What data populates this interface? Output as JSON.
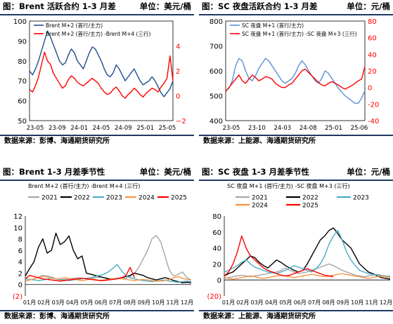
{
  "panels": {
    "p1": {
      "title": "图：Brent 活跃合约 1-3 月差",
      "unit": "单位：美元/桶",
      "source": "数据来源：彭博、海通期货研究所"
    },
    "p2": {
      "title": "图：SC 夜盘活跃合约 1-3 月差",
      "unit": "单位：元/桶",
      "source": "数据来源：上能源、海通期货研究所"
    },
    "p3": {
      "title": "图：Brent 1-3 月差季节性",
      "unit": "单位：美元/桶",
      "source": "数据来源：彭博、海通期货研究所"
    },
    "p4": {
      "title": "图：SC 夜盘 1-3 月差季节性",
      "unit": "单位：元/桶",
      "source": "数据来源：上能源、海通期货研究所"
    }
  },
  "chart_data": [
    {
      "id": "brent_spread",
      "type": "line",
      "title": "",
      "x_ticks": [
        "23-05",
        "23-09",
        "24-01",
        "24-05",
        "24-09",
        "25-01",
        "25-05"
      ],
      "left_axis": {
        "min": 50,
        "max": 100,
        "ticks": [
          50,
          60,
          70,
          80,
          90,
          100
        ]
      },
      "right_axis": {
        "min": -2,
        "max": 6,
        "ticks": [
          "−2",
          "0",
          "2",
          "4"
        ],
        "tick_values": [
          -2,
          0,
          2,
          4
        ]
      },
      "series": [
        {
          "name": "Brent M+2 (首行/主力)",
          "axis": "left",
          "color": "#1f4e8c",
          "values": [
            75,
            73,
            76,
            80,
            85,
            90,
            95,
            92,
            88,
            84,
            80,
            78,
            79,
            83,
            86,
            84,
            80,
            78,
            76,
            80,
            84,
            87,
            86,
            83,
            80,
            76,
            73,
            72,
            74,
            78,
            76,
            73,
            70,
            72,
            74,
            76,
            73,
            70,
            68,
            69,
            70,
            72,
            70,
            67,
            64,
            62,
            64,
            66,
            70
          ]
        },
        {
          "name": "Brent M+2 (首行/主力) -Brent M+4 (三行)",
          "axis": "right",
          "color": "#ff0000",
          "values": [
            0.5,
            0.3,
            0.8,
            1.5,
            2.5,
            3.5,
            2.8,
            2.5,
            1.8,
            1.4,
            1.0,
            0.6,
            0.8,
            1.3,
            1.6,
            1.4,
            1.1,
            0.9,
            0.8,
            1.0,
            1.2,
            1.4,
            1.2,
            1.0,
            0.6,
            0.3,
            0.1,
            0.2,
            0.5,
            0.7,
            0.4,
            0.0,
            -0.2,
            0.1,
            0.3,
            0.6,
            0.4,
            0.1,
            -0.1,
            0.2,
            0.4,
            0.6,
            0.5,
            0.3,
            0.7,
            1.0,
            1.4,
            3.2,
            1.2
          ]
        }
      ]
    },
    {
      "id": "sc_spread",
      "type": "line",
      "title": "",
      "x_ticks": [
        "23-05",
        "23-10",
        "24-03",
        "24-08",
        "25-01",
        "25-06"
      ],
      "left_axis": {
        "min": 400,
        "max": 800,
        "ticks": [
          400,
          500,
          600,
          700,
          800
        ]
      },
      "right_axis": {
        "min": -40,
        "max": 80,
        "ticks": [
          -40,
          -20,
          0,
          20,
          40,
          60,
          80
        ]
      },
      "series": [
        {
          "name": "SC 夜盘 M+1 (首行/主力)",
          "axis": "left",
          "color": "#5b8fd6",
          "values": [
            520,
            530,
            560,
            620,
            650,
            640,
            600,
            570,
            560,
            580,
            610,
            630,
            650,
            640,
            620,
            600,
            580,
            560,
            550,
            560,
            570,
            590,
            620,
            640,
            625,
            600,
            580,
            560,
            550,
            570,
            600,
            590,
            570,
            550,
            530,
            515,
            500,
            490,
            480,
            470,
            470,
            490,
            520
          ]
        },
        {
          "name": "SC 夜盘 M+1 (首行/主力) -SC 夜盘 M+3 (三行)",
          "axis": "right",
          "color": "#ff0000",
          "values": [
            -5,
            0,
            5,
            10,
            15,
            8,
            5,
            10,
            15,
            12,
            8,
            10,
            13,
            12,
            10,
            5,
            2,
            0,
            0,
            3,
            5,
            10,
            15,
            20,
            22,
            18,
            14,
            10,
            6,
            3,
            2,
            5,
            7,
            5,
            3,
            0,
            -2,
            0,
            2,
            5,
            8,
            10,
            25
          ]
        }
      ]
    },
    {
      "id": "brent_seasonal",
      "type": "line",
      "title": "",
      "xlabel": "",
      "ylabel": "",
      "legend_title": "Brent M+2 (首行/主力) -Brent M+4 (三行)",
      "x_ticks": [
        "01月",
        "02月",
        "03月",
        "04月",
        "05月",
        "06月",
        "07月",
        "08月",
        "09月",
        "10月",
        "11月",
        "12月"
      ],
      "y_axis": {
        "min": -2,
        "max": 12,
        "ticks": [
          "(2)",
          "0",
          "2",
          "4",
          "6",
          "8",
          "10",
          "12"
        ],
        "tick_values": [
          -2,
          0,
          2,
          4,
          6,
          8,
          10,
          12
        ]
      },
      "legend_position": "top",
      "series": [
        {
          "name": "2021",
          "color": "#a6a6a6",
          "values": [
            0.6,
            0.8,
            1.0,
            1.3,
            1.6,
            1.5,
            1.3,
            1.0,
            0.8,
            0.9,
            1.0,
            1.1,
            1.2,
            1.1,
            1.0,
            1.1,
            1.2,
            1.3,
            1.2,
            1.1,
            1.0,
            1.1,
            1.2,
            1.1,
            1.4,
            2.0,
            3.0,
            4.5,
            6.0,
            8.0,
            8.6,
            7.5,
            5.0,
            2.5,
            1.5,
            1.8,
            2.2,
            1.2,
            0.8
          ]
        },
        {
          "name": "2022",
          "color": "#000000",
          "values": [
            1.5,
            2.8,
            4.0,
            6.5,
            8.0,
            5.5,
            6.0,
            9.0,
            7.0,
            7.5,
            8.5,
            6.0,
            4.5,
            5.0,
            2.0,
            1.8,
            1.6,
            1.4,
            1.2,
            1.0,
            0.9,
            1.0,
            1.2,
            1.4,
            1.6,
            2.0,
            1.8,
            1.6,
            1.2,
            1.0,
            0.8,
            1.0,
            1.2,
            1.0,
            0.7,
            0.5,
            0.3,
            0.4,
            0.3
          ]
        },
        {
          "name": "2023",
          "color": "#4bacc6",
          "values": [
            1.0,
            0.9,
            0.8,
            0.7,
            0.8,
            0.9,
            1.2,
            1.0,
            0.9,
            0.8,
            0.7,
            0.8,
            0.9,
            1.0,
            1.1,
            1.2,
            1.4,
            1.6,
            1.8,
            2.2,
            2.8,
            3.5,
            2.5,
            1.6,
            1.2,
            1.0,
            0.8,
            0.7,
            0.6,
            0.5,
            0.6,
            0.7,
            0.8,
            0.6,
            0.5,
            0.4,
            0.5,
            0.6,
            0.5
          ]
        },
        {
          "name": "2024",
          "color": "#f79646",
          "values": [
            0.6,
            0.8,
            1.0,
            1.2,
            1.4,
            1.3,
            1.1,
            1.0,
            1.0,
            1.2,
            1.1,
            0.9,
            0.8,
            0.7,
            0.8,
            1.0,
            0.9,
            0.7,
            0.8,
            0.9,
            1.0,
            1.1,
            1.0,
            0.9,
            0.8,
            0.7,
            0.8,
            0.9,
            0.8,
            0.7,
            0.6,
            0.6,
            0.7,
            0.9,
            1.2,
            1.4,
            1.1,
            0.9,
            0.8
          ]
        },
        {
          "name": "2025",
          "color": "#ff0000",
          "values": [
            1.0,
            1.6,
            1.4,
            1.2,
            1.0,
            0.9,
            0.8,
            0.7,
            0.6,
            0.7,
            0.8,
            0.9,
            1.0,
            1.1,
            1.0,
            0.9,
            0.8,
            0.7,
            0.7,
            0.8,
            0.9,
            1.0,
            1.2,
            1.5,
            3.0,
            1.2
          ]
        }
      ]
    },
    {
      "id": "sc_seasonal",
      "type": "line",
      "title": "",
      "xlabel": "",
      "ylabel": "",
      "legend_title": "SC 夜盘 M+1 (首行/主力) -SC 夜盘 M+3 (三行)",
      "x_ticks": [
        "01月",
        "02月",
        "03月",
        "04月",
        "05月",
        "06月",
        "07月",
        "08月",
        "09月",
        "10月",
        "11月",
        "12月"
      ],
      "y_axis": {
        "min": -20,
        "max": 80,
        "ticks": [
          "(20)",
          "0",
          "20",
          "40",
          "60",
          "80"
        ],
        "tick_values": [
          -20,
          0,
          20,
          40,
          60,
          80
        ]
      },
      "legend_position": "top",
      "series": [
        {
          "name": "2021",
          "color": "#a6a6a6",
          "values": [
            2,
            3,
            4,
            5,
            6,
            5,
            4,
            5,
            6,
            7,
            8,
            9,
            10,
            12,
            15,
            12,
            10,
            8,
            9,
            10,
            12,
            14,
            16,
            18,
            20,
            18,
            15,
            12,
            10,
            8,
            6,
            5,
            4,
            5,
            6,
            7,
            6,
            5,
            4
          ]
        },
        {
          "name": "2022",
          "color": "#000000",
          "values": [
            5,
            8,
            10,
            15,
            20,
            25,
            30,
            28,
            22,
            18,
            15,
            20,
            25,
            22,
            18,
            15,
            12,
            10,
            12,
            20,
            30,
            40,
            50,
            55,
            62,
            65,
            58,
            50,
            45,
            40,
            30,
            20,
            15,
            10,
            8,
            5,
            3,
            2,
            1
          ]
        },
        {
          "name": "2023",
          "color": "#4bacc6",
          "values": [
            10,
            12,
            15,
            18,
            22,
            25,
            20,
            16,
            14,
            12,
            10,
            9,
            8,
            10,
            12,
            15,
            18,
            16,
            14,
            12,
            10,
            14,
            20,
            30,
            45,
            55,
            62,
            50,
            35,
            25,
            18,
            12,
            10,
            8,
            7,
            6,
            5,
            4,
            5
          ]
        },
        {
          "name": "2024",
          "color": "#f79646",
          "values": [
            3,
            2,
            1,
            2,
            3,
            4,
            5,
            4,
            3,
            2,
            3,
            4,
            5,
            6,
            5,
            4,
            3,
            4,
            5,
            6,
            7,
            6,
            5,
            4,
            5,
            6,
            7,
            8,
            7,
            6,
            5,
            4,
            3,
            2,
            3,
            4,
            5,
            4,
            3
          ]
        },
        {
          "name": "2025",
          "color": "#ff0000",
          "values": [
            5,
            10,
            20,
            35,
            55,
            40,
            30,
            25,
            20,
            15,
            12,
            10,
            8,
            6,
            5,
            6,
            8,
            10,
            12,
            14,
            12,
            10,
            8,
            6,
            5,
            4
          ]
        }
      ]
    }
  ]
}
